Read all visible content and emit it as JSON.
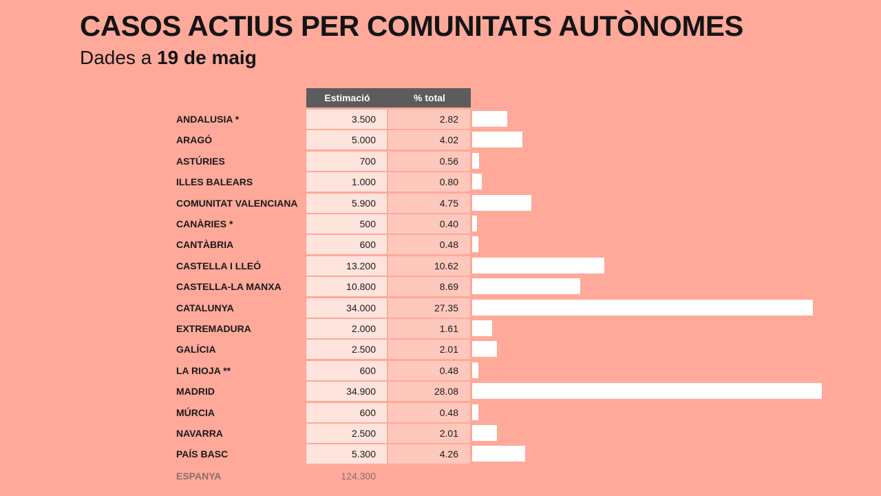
{
  "header": {
    "title": "CASOS ACTIUS PER COMUNITATS AUTÒNOMES",
    "subtitle_prefix": "Dades a",
    "subtitle_date": "19 de maig"
  },
  "colors": {
    "background": "#ffa99a",
    "header_band": "#5c5c5c",
    "bar": "#ffffff"
  },
  "chart_data": {
    "type": "bar",
    "orientation": "horizontal",
    "title": "CASOS ACTIUS PER COMUNITATS AUTÒNOMES",
    "subtitle": "Dades a 19 de maig",
    "columns": [
      "Estimació",
      "% total"
    ],
    "categories": [
      "ANDALUSIA *",
      "ARAGÓ",
      "ASTÚRIES",
      "ILLES BALEARS",
      "COMUNITAT VALENCIANA",
      "CANÀRIES *",
      "CANTÀBRIA",
      "CASTELLA I LLEÓ",
      "CASTELLA-LA MANXA",
      "CATALUNYA",
      "EXTREMADURA",
      "GALÍCIA",
      "LA RIOJA **",
      "MADRID",
      "MÚRCIA",
      "NAVARRA",
      "PAÍS BASC"
    ],
    "estimacio": [
      "3.500",
      "5.000",
      "700",
      "1.000",
      "5.900",
      "500",
      "600",
      "13.200",
      "10.800",
      "34.000",
      "2.000",
      "2.500",
      "600",
      "34.900",
      "600",
      "2.500",
      "5.300"
    ],
    "pct_total": [
      "2.82",
      "4.02",
      "0.56",
      "0.80",
      "4.75",
      "0.40",
      "0.48",
      "10.62",
      "8.69",
      "27.35",
      "1.61",
      "2.01",
      "0.48",
      "28.08",
      "0.48",
      "2.01",
      "4.26"
    ],
    "values": [
      2.82,
      4.02,
      0.56,
      0.8,
      4.75,
      0.4,
      0.48,
      10.62,
      8.69,
      27.35,
      1.61,
      2.01,
      0.48,
      28.08,
      0.48,
      2.01,
      4.26
    ],
    "total_label": "ESPANYA",
    "total_value": "124.300",
    "xlim": [
      0,
      28.08
    ]
  }
}
